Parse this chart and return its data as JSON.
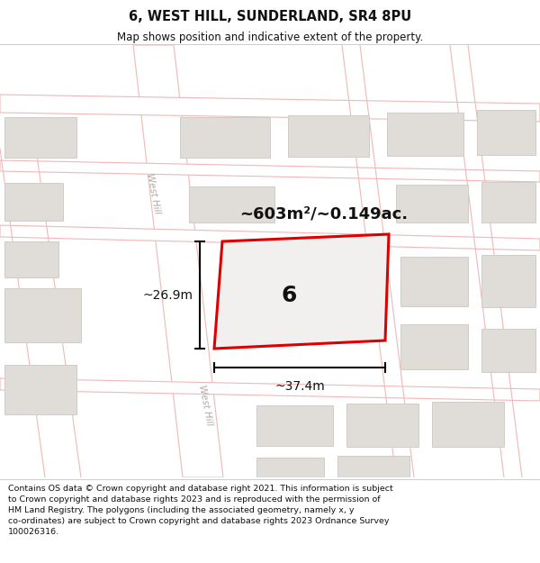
{
  "title_line1": "6, WEST HILL, SUNDERLAND, SR4 8PU",
  "title_line2": "Map shows position and indicative extent of the property.",
  "area_text": "~603m²/~0.149ac.",
  "dim_width": "~37.4m",
  "dim_height": "~26.9m",
  "property_number": "6",
  "footer_lines": [
    "Contains OS data © Crown copyright and database right 2021. This information is subject",
    "to Crown copyright and database rights 2023 and is reproduced with the permission of",
    "HM Land Registry. The polygons (including the associated geometry, namely x, y",
    "co-ordinates) are subject to Crown copyright and database rights 2023 Ordnance Survey",
    "100026316."
  ],
  "map_bg": "#f5f3f0",
  "road_fill": "#ffffff",
  "road_line": "#f0b8b8",
  "bld_fill": "#e0ddd8",
  "bld_edge": "#d0cdc8",
  "plot_fill": "#f2f0ee",
  "plot_edge": "#dd0000",
  "plot_lw": 2.2,
  "dim_color": "#000000",
  "text_color": "#111111",
  "header_bg": "#ffffff",
  "footer_bg": "#ffffff",
  "road_label_color": "#b0aba5",
  "header_sep_color": "#cccccc",
  "footer_sep_color": "#cccccc"
}
